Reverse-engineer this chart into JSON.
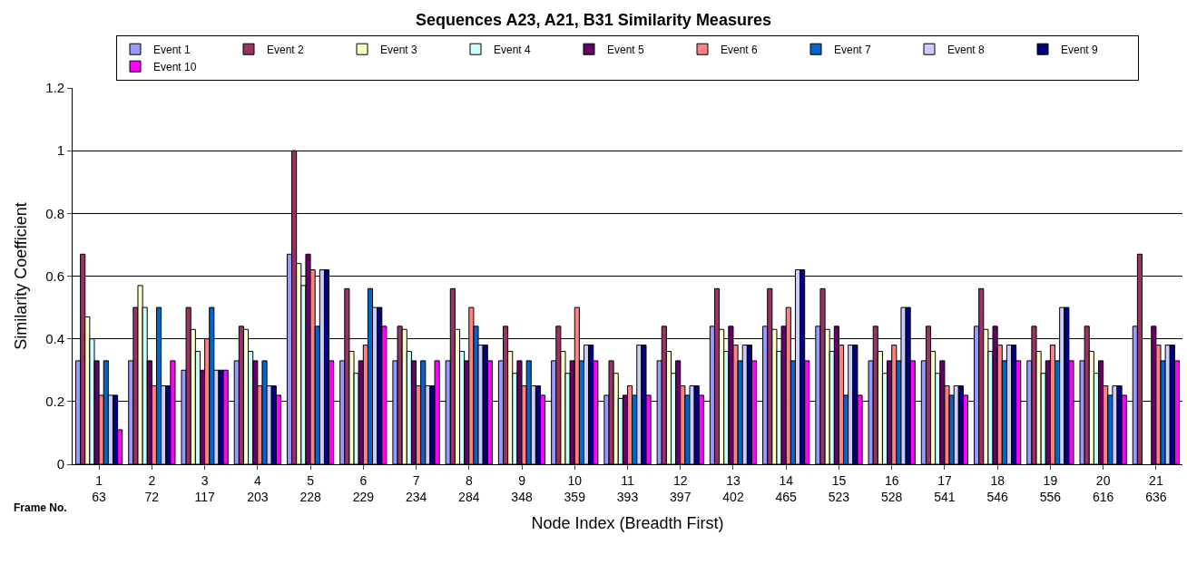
{
  "chart_data": {
    "type": "bar",
    "title": "Sequences A23, A21, B31 Similarity Measures",
    "xlabel": "Node Index (Breadth First)",
    "ylabel": "Similarity Coefficient",
    "categories": [
      "1\n63",
      "2\n72",
      "3\n117",
      "4\n203",
      "5\n228",
      "6\n229",
      "7\n234",
      "8\n284",
      "9\n348",
      "10\n359",
      "11\n393",
      "12\n397",
      "13\n402",
      "14\n465",
      "15\n523",
      "16\n528",
      "17\n541",
      "18\n546",
      "19\n556",
      "20\n616",
      "21\n636"
    ],
    "annotations": [
      "Frame No."
    ],
    "series": [
      {
        "name": "Event 1",
        "color": "#9999ff",
        "values": [
          0.33,
          0.33,
          0.3,
          0.33,
          0.67,
          0.33,
          0.33,
          0.33,
          0.33,
          0.33,
          0.22,
          0.33,
          0.44,
          0.44,
          0.44,
          0.33,
          0.33,
          0.44,
          0.33,
          0.33,
          0.44
        ]
      },
      {
        "name": "Event 2",
        "color": "#993366",
        "values": [
          0.67,
          0.5,
          0.5,
          0.44,
          1.0,
          0.56,
          0.44,
          0.56,
          0.44,
          0.44,
          0.33,
          0.44,
          0.56,
          0.56,
          0.56,
          0.44,
          0.44,
          0.56,
          0.44,
          0.44,
          0.67
        ]
      },
      {
        "name": "Event 3",
        "color": "#ffffcc",
        "values": [
          0.47,
          0.57,
          0.43,
          0.43,
          0.64,
          0.36,
          0.43,
          0.43,
          0.36,
          0.36,
          0.29,
          0.36,
          0.43,
          0.43,
          0.43,
          0.36,
          0.36,
          0.43,
          0.36,
          0.36,
          null
        ]
      },
      {
        "name": "Event 4",
        "color": "#ccffff",
        "values": [
          0.4,
          0.5,
          0.36,
          0.36,
          0.57,
          0.29,
          0.36,
          0.36,
          0.29,
          0.29,
          0.21,
          0.29,
          0.36,
          0.36,
          0.36,
          0.29,
          0.29,
          0.36,
          0.29,
          0.29,
          null
        ]
      },
      {
        "name": "Event 5",
        "color": "#660066",
        "values": [
          0.33,
          0.33,
          0.3,
          0.33,
          0.67,
          0.33,
          0.33,
          0.33,
          0.33,
          0.33,
          0.22,
          0.33,
          0.44,
          0.44,
          0.44,
          0.33,
          0.33,
          0.44,
          0.33,
          0.33,
          0.44
        ]
      },
      {
        "name": "Event 6",
        "color": "#ff8080",
        "values": [
          0.22,
          0.25,
          0.4,
          0.25,
          0.62,
          0.38,
          0.25,
          0.5,
          0.25,
          0.5,
          0.25,
          0.25,
          0.38,
          0.5,
          0.38,
          0.38,
          0.25,
          0.38,
          0.38,
          0.25,
          0.38
        ]
      },
      {
        "name": "Event 7",
        "color": "#0066cc",
        "values": [
          0.33,
          0.5,
          0.5,
          0.33,
          0.44,
          0.56,
          0.33,
          0.44,
          0.33,
          0.33,
          0.22,
          0.22,
          0.33,
          0.33,
          0.22,
          0.33,
          0.22,
          0.33,
          0.33,
          0.22,
          0.33
        ]
      },
      {
        "name": "Event 8",
        "color": "#ccccff",
        "values": [
          0.22,
          0.25,
          0.3,
          0.25,
          0.62,
          0.5,
          0.25,
          0.38,
          0.25,
          0.38,
          0.38,
          0.25,
          0.38,
          0.62,
          0.38,
          0.5,
          0.25,
          0.38,
          0.5,
          0.25,
          0.38
        ]
      },
      {
        "name": "Event 9",
        "color": "#000080",
        "values": [
          0.22,
          0.25,
          0.3,
          0.25,
          0.62,
          0.5,
          0.25,
          0.38,
          0.25,
          0.38,
          0.38,
          0.25,
          0.38,
          0.62,
          0.38,
          0.5,
          0.25,
          0.38,
          0.5,
          0.25,
          0.38
        ]
      },
      {
        "name": "Event 10",
        "color": "#ff00ff",
        "values": [
          0.11,
          0.33,
          0.3,
          0.22,
          0.33,
          0.44,
          0.33,
          0.33,
          0.22,
          0.33,
          0.22,
          0.22,
          0.33,
          0.33,
          0.22,
          0.33,
          0.22,
          0.33,
          0.33,
          0.22,
          0.33
        ]
      }
    ],
    "ylim": [
      0,
      1.2
    ],
    "yticks": [
      0,
      0.2,
      0.4,
      0.6,
      0.8,
      1,
      1.2
    ],
    "grid": "y",
    "legend": "top"
  }
}
